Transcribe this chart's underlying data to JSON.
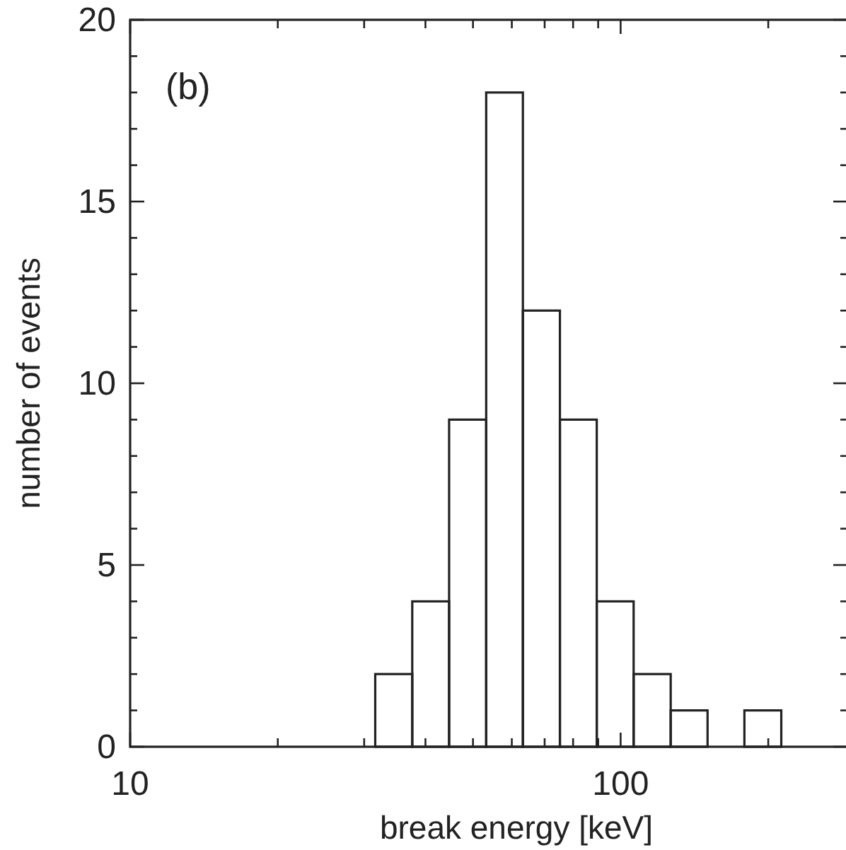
{
  "chart_data": {
    "type": "histogram",
    "xlabel": "break energy [keV]",
    "ylabel": "number of events",
    "annotations": [
      "(b)"
    ],
    "bins": [
      31.6,
      37.6,
      44.7,
      53.2,
      63.2,
      75.2,
      89.4,
      106.3,
      126.5,
      150.4,
      178.8,
      212.6
    ],
    "values": [
      2,
      4,
      9,
      18,
      12,
      9,
      4,
      2,
      1,
      0,
      1
    ],
    "color": "#222222",
    "log": "x",
    "grid": false,
    "xlim": [
      10,
      290
    ],
    "xticks": [
      10,
      {
        "value": 20,
        "label": null
      },
      {
        "value": 30,
        "label": null
      },
      {
        "value": 40,
        "label": null
      },
      {
        "value": 50,
        "label": null
      },
      {
        "value": 60,
        "label": null
      },
      {
        "value": 70,
        "label": null
      },
      {
        "value": 80,
        "label": null
      },
      {
        "value": 90,
        "label": null
      },
      100,
      {
        "value": 200,
        "label": null
      }
    ],
    "ylim": [
      0,
      20
    ],
    "yticks": [
      0,
      {
        "value": 1,
        "label": null
      },
      {
        "value": 2,
        "label": null
      },
      {
        "value": 3,
        "label": null
      },
      {
        "value": 4,
        "label": null
      },
      5,
      {
        "value": 6,
        "label": null
      },
      {
        "value": 7,
        "label": null
      },
      {
        "value": 8,
        "label": null
      },
      {
        "value": 9,
        "label": null
      },
      10,
      {
        "value": 11,
        "label": null
      },
      {
        "value": 12,
        "label": null
      },
      {
        "value": 13,
        "label": null
      },
      {
        "value": 14,
        "label": null
      },
      15,
      {
        "value": 16,
        "label": null
      },
      {
        "value": 17,
        "label": null
      },
      {
        "value": 18,
        "label": null
      },
      {
        "value": 19,
        "label": null
      },
      20
    ]
  }
}
